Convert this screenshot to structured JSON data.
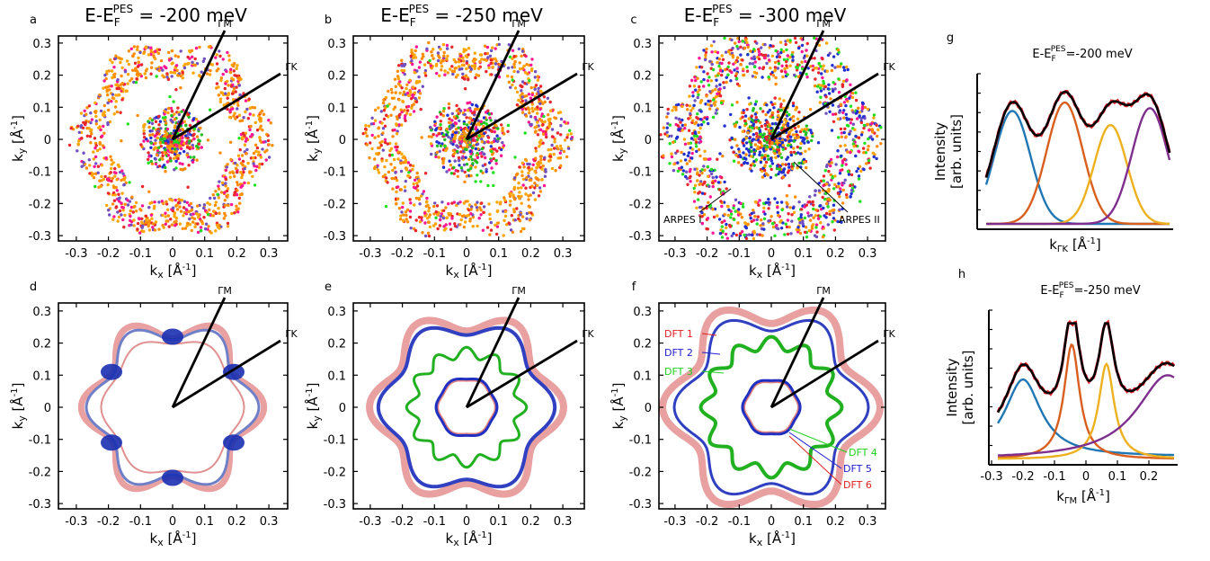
{
  "panels": {
    "a": {
      "label": "a",
      "title": "E-E_F^PES = -200 meV"
    },
    "b": {
      "label": "b",
      "title": "E-E_F^PES = -250 meV"
    },
    "c": {
      "label": "c",
      "title": "E-E_F^PES = -300 meV"
    },
    "d": {
      "label": "d"
    },
    "e": {
      "label": "e"
    },
    "f": {
      "label": "f"
    },
    "g": {
      "label": "g",
      "title": "E-E_F^PES=-200 meV"
    },
    "h": {
      "label": "h",
      "title": "E-E_F^PES=-250 meV"
    }
  },
  "title_parts": {
    "prefix": "E-E",
    "sub": "F",
    "sup": "PES"
  },
  "title_values": {
    "a": " = -200 meV",
    "b": " = -250 meV",
    "c": " = -300 meV",
    "g": "=-200 meV",
    "h": "=-250 meV"
  },
  "axes": {
    "ticks": [
      "-0.3",
      "-0.2",
      "-0.1",
      "0",
      "0.1",
      "0.2",
      "0.3"
    ],
    "yticks": [
      "0.3",
      "0.2",
      "0.1",
      "0",
      "-0.1",
      "-0.2",
      "-0.3"
    ],
    "x_label": "kx [Å-1]",
    "y_label": "ky [Å-1]",
    "dir_M": "ΓM",
    "dir_K": "ΓK",
    "intensity_1": "Intensity",
    "intensity_2": "[arb. units]",
    "g_x_label": "kΓK [Å-1]",
    "h_x_label": "kΓM [Å-1]",
    "h_ticks": [
      "-0.3",
      "-0.2",
      "-0.1",
      "0",
      "0.1",
      "0.2"
    ]
  },
  "annotations": {
    "arpes1": "ARPES I",
    "arpes2": "ARPES II",
    "dft": [
      "DFT 1",
      "DFT 2",
      "DFT 3",
      "DFT 4",
      "DFT 5",
      "DFT 6"
    ]
  },
  "colors": {
    "dft1": "#e02020",
    "dft2": "#2020d0",
    "dft3": "#20d020",
    "dft4": "#20d020",
    "dft5": "#2020d0",
    "dft6": "#e02020",
    "fit_blue": "#1f77b4",
    "fit_orange": "#d95f1e",
    "fit_yellow": "#edb120",
    "fit_purple": "#7e2f8e",
    "total": "#000000",
    "data": "#e8262b"
  },
  "chart_data": [
    {
      "type": "line",
      "panel": "g",
      "title": "E-E_F^PES=-200 meV",
      "xlabel": "kΓK [Å-1]",
      "ylabel": "Intensity [arb. units]",
      "series": [
        {
          "values": [
            0.55,
            0.82,
            0.68,
            0.9,
            0.66,
            0.83,
            0.65
          ]
        }
      ]
    },
    {
      "type": "line",
      "panel": "h",
      "title": "E-E_F^PES=-250 meV",
      "xlabel": "kΓM [Å-1]",
      "ylabel": "Intensity [arb. units]",
      "x": [
        -0.25,
        -0.2,
        -0.1,
        -0.05,
        0,
        0.06,
        0.1,
        0.2,
        0.25
      ],
      "series": [
        {
          "values": [
            0.52,
            0.56,
            0.55,
            0.92,
            0.42,
            0.82,
            0.55,
            0.52,
            0.6
          ]
        }
      ]
    }
  ]
}
